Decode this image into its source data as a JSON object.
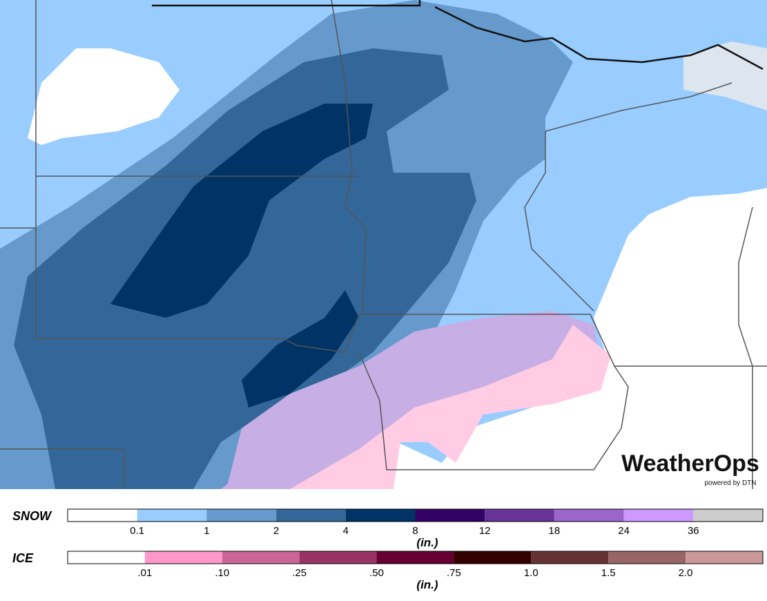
{
  "brand": {
    "name": "WeatherOps",
    "tagline": "powered by DTN"
  },
  "legend": {
    "snow": {
      "title": "SNOW",
      "unit": "(in.)",
      "colors": [
        "#ffffff",
        "#99ccff",
        "#6699cc",
        "#336699",
        "#003366",
        "#330066",
        "#663399",
        "#9966cc",
        "#cc99ff",
        "#cccccc"
      ],
      "labels": [
        "0.1",
        "1",
        "2",
        "4",
        "8",
        "12",
        "18",
        "24",
        "36"
      ]
    },
    "ice": {
      "title": "ICE",
      "unit": "(in.)",
      "colors": [
        "#ffffff",
        "#ff99cc",
        "#cc6699",
        "#993366",
        "#660033",
        "#330000",
        "#663333",
        "#996666",
        "#cc9999"
      ],
      "labels": [
        ".01",
        ".10",
        ".25",
        ".50",
        ".75",
        "1.0",
        "1.5",
        "2.0"
      ]
    }
  }
}
